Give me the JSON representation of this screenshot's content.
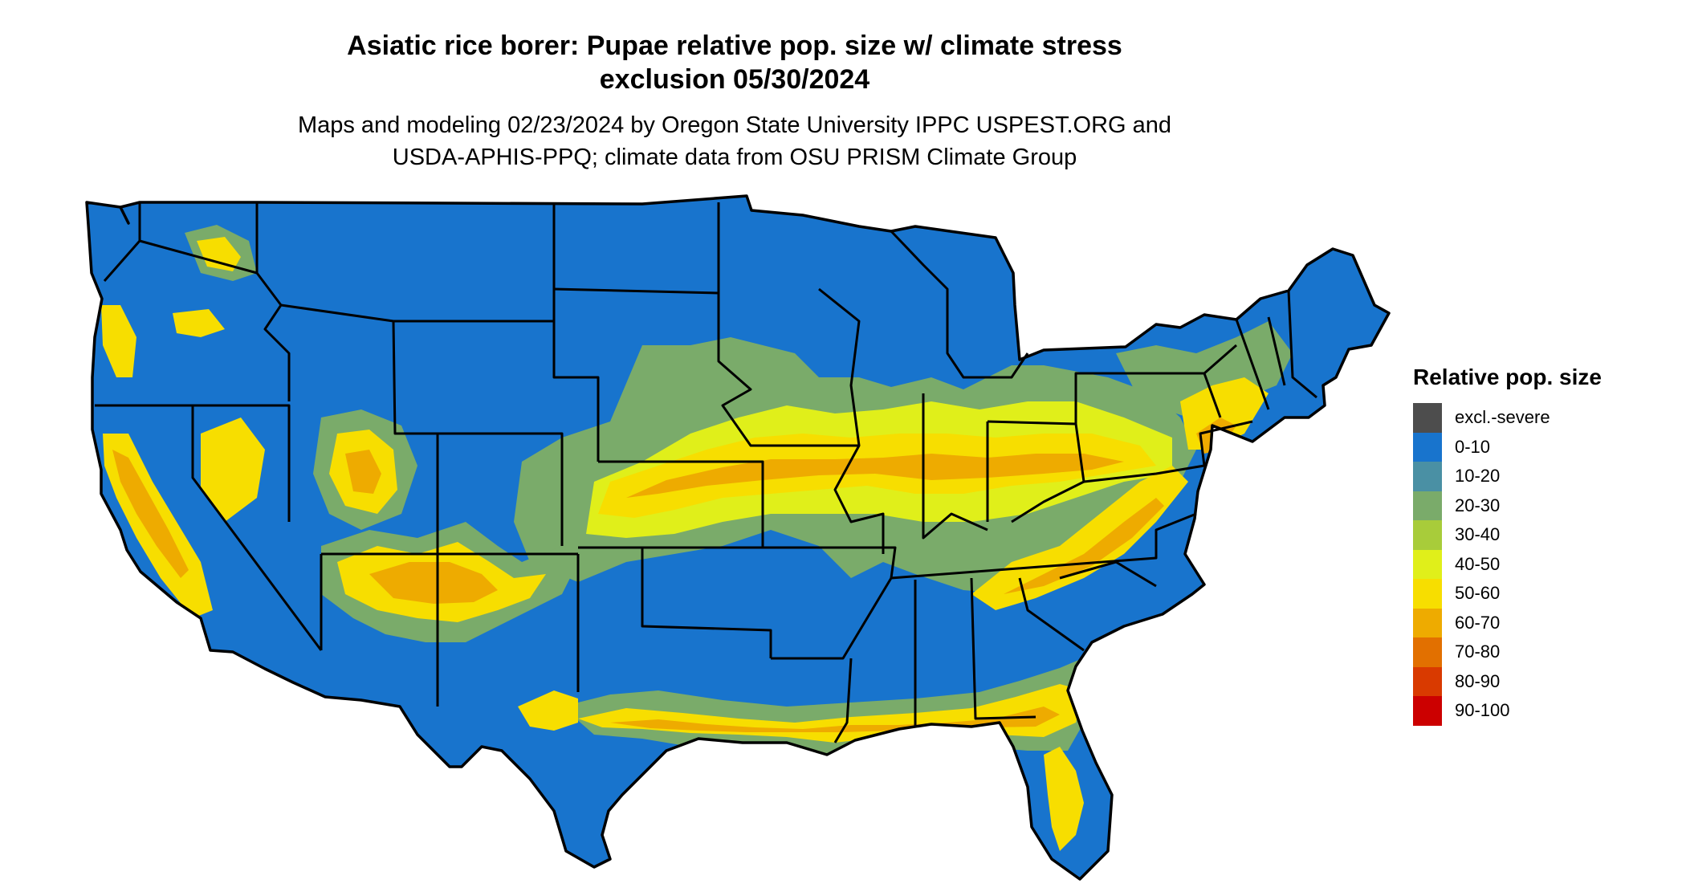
{
  "title_line1": "Asiatic rice borer: Pupae relative pop. size w/ climate stress",
  "title_line2": "exclusion 05/30/2024",
  "subtitle_line1": "Maps and modeling 02/23/2024 by Oregon State University IPPC USPEST.ORG and",
  "subtitle_line2": "USDA-APHIS-PPQ; climate data from OSU PRISM Climate Group",
  "legend": {
    "title": "Relative pop. size",
    "items": [
      {
        "label": "excl.-severe",
        "color": "#4d4d4d"
      },
      {
        "label": "0-10",
        "color": "#1874cd"
      },
      {
        "label": "10-20",
        "color": "#4a90a4"
      },
      {
        "label": "20-30",
        "color": "#7aab6a"
      },
      {
        "label": "30-40",
        "color": "#a8cc3a"
      },
      {
        "label": "40-50",
        "color": "#e0ef1a"
      },
      {
        "label": "50-60",
        "color": "#f7de00"
      },
      {
        "label": "60-70",
        "color": "#eeab00"
      },
      {
        "label": "70-80",
        "color": "#e27000"
      },
      {
        "label": "80-90",
        "color": "#d93a00"
      },
      {
        "label": "90-100",
        "color": "#cc0000"
      }
    ]
  }
}
